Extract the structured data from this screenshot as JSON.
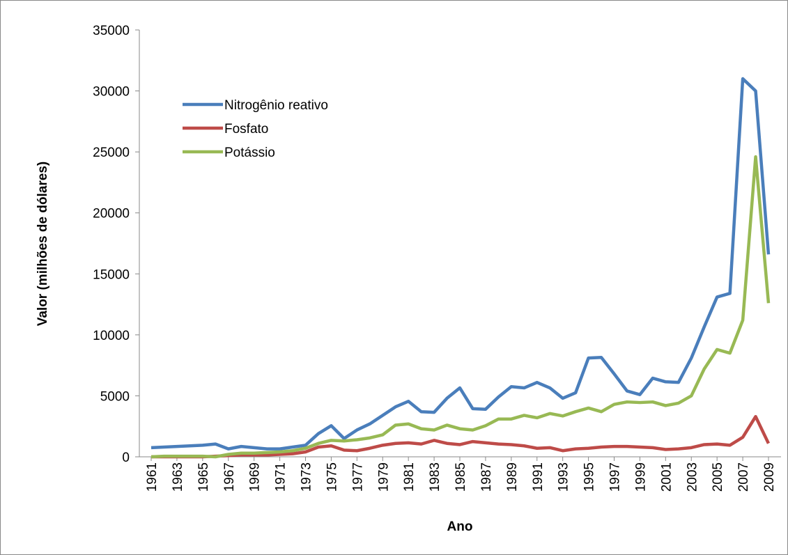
{
  "chart_data": {
    "type": "line",
    "x_label": "Ano",
    "y_label": "Valor (milhões de dólares)",
    "x": [
      1961,
      1962,
      1963,
      1964,
      1965,
      1966,
      1967,
      1968,
      1969,
      1970,
      1971,
      1972,
      1973,
      1974,
      1975,
      1976,
      1977,
      1978,
      1979,
      1980,
      1981,
      1982,
      1983,
      1984,
      1985,
      1986,
      1987,
      1988,
      1989,
      1990,
      1991,
      1992,
      1993,
      1994,
      1995,
      1996,
      1997,
      1998,
      1999,
      2000,
      2001,
      2002,
      2003,
      2004,
      2005,
      2006,
      2007,
      2008,
      2009
    ],
    "xlim": [
      1961,
      2009
    ],
    "xticks": [
      1961,
      1963,
      1965,
      1967,
      1969,
      1971,
      1973,
      1975,
      1977,
      1979,
      1981,
      1983,
      1985,
      1987,
      1989,
      1991,
      1993,
      1995,
      1997,
      1999,
      2001,
      2003,
      2005,
      2007,
      2009
    ],
    "ylim": [
      0,
      35000
    ],
    "yticks": [
      0,
      5000,
      10000,
      15000,
      20000,
      25000,
      30000,
      35000
    ],
    "grid": false,
    "legend": "top-left",
    "series": [
      {
        "name": "Nitrogênio reativo",
        "color": "#4a7ebb",
        "values": [
          750,
          800,
          850,
          900,
          950,
          1050,
          650,
          850,
          750,
          650,
          650,
          800,
          950,
          1900,
          2550,
          1500,
          2200,
          2700,
          3400,
          4100,
          4550,
          3700,
          3650,
          4800,
          5650,
          3950,
          3900,
          4900,
          5750,
          5650,
          6100,
          5650,
          4800,
          5250,
          8100,
          8150,
          6800,
          5400,
          5100,
          6450,
          6150,
          6100,
          8100,
          10650,
          13100,
          13400,
          31000,
          30000,
          16600
        ]
      },
      {
        "name": "Fosfato",
        "color": "#be4b48",
        "values": [
          0,
          0,
          0,
          0,
          0,
          50,
          100,
          150,
          150,
          150,
          200,
          250,
          400,
          800,
          900,
          550,
          500,
          700,
          950,
          1100,
          1150,
          1050,
          1350,
          1100,
          1000,
          1250,
          1150,
          1050,
          1000,
          900,
          700,
          750,
          500,
          650,
          700,
          800,
          850,
          850,
          800,
          750,
          600,
          650,
          750,
          1000,
          1050,
          950,
          1600,
          3300,
          1100
        ]
      },
      {
        "name": "Potássio",
        "color": "#98b954",
        "values": [
          0,
          50,
          50,
          50,
          50,
          0,
          200,
          300,
          300,
          350,
          400,
          500,
          700,
          1100,
          1350,
          1300,
          1400,
          1550,
          1800,
          2600,
          2700,
          2300,
          2200,
          2600,
          2300,
          2200,
          2550,
          3100,
          3100,
          3400,
          3200,
          3550,
          3350,
          3700,
          4000,
          3700,
          4300,
          4500,
          4450,
          4500,
          4200,
          4400,
          5000,
          7200,
          8800,
          8500,
          11200,
          24600,
          12600
        ]
      }
    ]
  }
}
